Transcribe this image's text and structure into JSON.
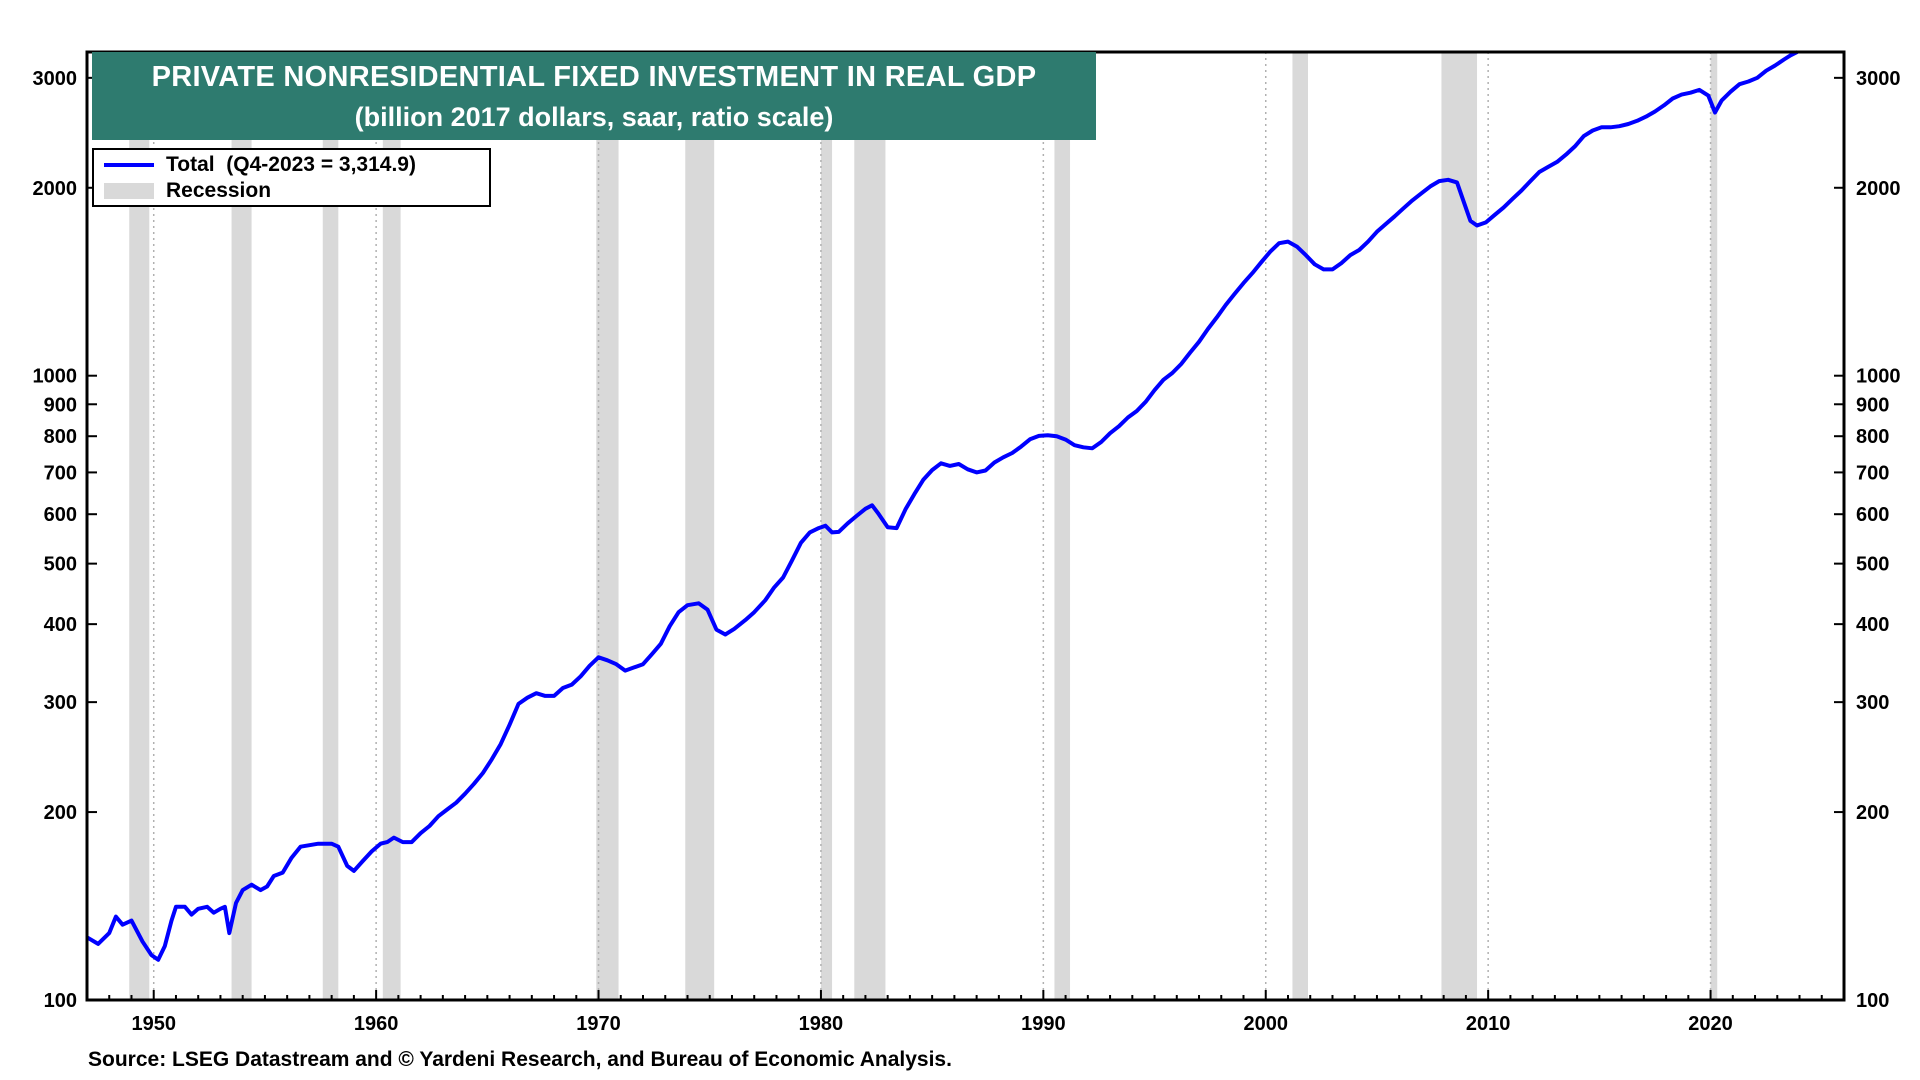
{
  "chart_data": {
    "type": "line",
    "title": "PRIVATE NONRESIDENTIAL FIXED INVESTMENT IN REAL GDP",
    "subtitle": "(billion 2017 dollars, saar, ratio scale)",
    "source": "Source: LSEG Datastream and © Yardeni Research, and Bureau of Economic Analysis.",
    "y_scale": "log",
    "ylim": [
      100,
      3300
    ],
    "xlim": [
      1947,
      2026
    ],
    "grid": true,
    "legend_position": "top-left",
    "legend": [
      {
        "label": "Total  (Q4-2023 = 3,314.9)",
        "kind": "line",
        "color": "#0000ff"
      },
      {
        "label": "Recession",
        "kind": "band",
        "color": "#d9d9d9"
      }
    ],
    "y_ticks": [
      {
        "value": 100,
        "label": "100"
      },
      {
        "value": 200,
        "label": "200"
      },
      {
        "value": 300,
        "label": "300"
      },
      {
        "value": 400,
        "label": "400"
      },
      {
        "value": 500,
        "label": "500"
      },
      {
        "value": 600,
        "label": "600"
      },
      {
        "value": 700,
        "label": "700"
      },
      {
        "value": 800,
        "label": "800"
      },
      {
        "value": 900,
        "label": "900"
      },
      {
        "value": 1000,
        "label": "1000"
      },
      {
        "value": 2000,
        "label": "2000"
      },
      {
        "value": 3000,
        "label": "3000"
      }
    ],
    "x_ticks": [
      {
        "value": 1950,
        "label": "1950"
      },
      {
        "value": 1960,
        "label": "1960"
      },
      {
        "value": 1970,
        "label": "1970"
      },
      {
        "value": 1980,
        "label": "1980"
      },
      {
        "value": 1990,
        "label": "1990"
      },
      {
        "value": 2000,
        "label": "2000"
      },
      {
        "value": 2010,
        "label": "2010"
      },
      {
        "value": 2020,
        "label": "2020"
      }
    ],
    "recessions": [
      [
        1948.9,
        1949.8
      ],
      [
        1953.5,
        1954.4
      ],
      [
        1957.6,
        1958.3
      ],
      [
        1960.3,
        1961.1
      ],
      [
        1969.9,
        1970.9
      ],
      [
        1973.9,
        1975.2
      ],
      [
        1980.0,
        1980.5
      ],
      [
        1981.5,
        1982.9
      ],
      [
        1990.5,
        1991.2
      ],
      [
        2001.2,
        2001.9
      ],
      [
        2007.9,
        2009.5
      ],
      [
        2020.0,
        2020.3
      ]
    ],
    "series": [
      {
        "name": "Total",
        "color": "#0000ff",
        "points": [
          [
            1947.0,
            126
          ],
          [
            1947.5,
            123
          ],
          [
            1948.0,
            128
          ],
          [
            1948.3,
            136
          ],
          [
            1948.6,
            132
          ],
          [
            1949.0,
            134
          ],
          [
            1949.5,
            124
          ],
          [
            1949.9,
            118
          ],
          [
            1950.2,
            116
          ],
          [
            1950.5,
            122
          ],
          [
            1950.8,
            134
          ],
          [
            1951.0,
            141
          ],
          [
            1951.4,
            141
          ],
          [
            1951.7,
            137
          ],
          [
            1952.0,
            140
          ],
          [
            1952.4,
            141
          ],
          [
            1952.7,
            138
          ],
          [
            1953.0,
            140
          ],
          [
            1953.2,
            141
          ],
          [
            1953.4,
            128
          ],
          [
            1953.7,
            143
          ],
          [
            1954.0,
            150
          ],
          [
            1954.4,
            153
          ],
          [
            1954.8,
            150
          ],
          [
            1955.1,
            152
          ],
          [
            1955.4,
            158
          ],
          [
            1955.8,
            160
          ],
          [
            1956.2,
            169
          ],
          [
            1956.6,
            176
          ],
          [
            1957.0,
            177
          ],
          [
            1957.4,
            178
          ],
          [
            1957.7,
            178
          ],
          [
            1958.0,
            178
          ],
          [
            1958.3,
            176
          ],
          [
            1958.7,
            164
          ],
          [
            1959.0,
            161
          ],
          [
            1959.4,
            167
          ],
          [
            1959.8,
            173
          ],
          [
            1960.2,
            178
          ],
          [
            1960.5,
            179
          ],
          [
            1960.8,
            182
          ],
          [
            1961.2,
            179
          ],
          [
            1961.6,
            179
          ],
          [
            1962.0,
            185
          ],
          [
            1962.4,
            190
          ],
          [
            1962.8,
            197
          ],
          [
            1963.2,
            202
          ],
          [
            1963.6,
            207
          ],
          [
            1964.0,
            214
          ],
          [
            1964.4,
            222
          ],
          [
            1964.8,
            231
          ],
          [
            1965.2,
            243
          ],
          [
            1965.6,
            257
          ],
          [
            1966.0,
            276
          ],
          [
            1966.4,
            298
          ],
          [
            1966.8,
            305
          ],
          [
            1967.2,
            310
          ],
          [
            1967.6,
            307
          ],
          [
            1968.0,
            307
          ],
          [
            1968.4,
            316
          ],
          [
            1968.8,
            320
          ],
          [
            1969.2,
            330
          ],
          [
            1969.6,
            343
          ],
          [
            1970.0,
            354
          ],
          [
            1970.4,
            350
          ],
          [
            1970.8,
            345
          ],
          [
            1971.2,
            337
          ],
          [
            1971.6,
            341
          ],
          [
            1972.0,
            345
          ],
          [
            1972.4,
            358
          ],
          [
            1972.8,
            372
          ],
          [
            1973.2,
            397
          ],
          [
            1973.6,
            418
          ],
          [
            1974.0,
            429
          ],
          [
            1974.5,
            432
          ],
          [
            1974.9,
            422
          ],
          [
            1975.3,
            392
          ],
          [
            1975.7,
            385
          ],
          [
            1976.1,
            393
          ],
          [
            1976.6,
            406
          ],
          [
            1977.0,
            418
          ],
          [
            1977.5,
            437
          ],
          [
            1977.9,
            458
          ],
          [
            1978.3,
            475
          ],
          [
            1978.7,
            506
          ],
          [
            1979.1,
            540
          ],
          [
            1979.5,
            561
          ],
          [
            1979.9,
            570
          ],
          [
            1980.2,
            575
          ],
          [
            1980.5,
            561
          ],
          [
            1980.8,
            562
          ],
          [
            1981.2,
            580
          ],
          [
            1981.6,
            596
          ],
          [
            1982.0,
            612
          ],
          [
            1982.3,
            620
          ],
          [
            1982.6,
            600
          ],
          [
            1983.0,
            572
          ],
          [
            1983.4,
            570
          ],
          [
            1983.8,
            611
          ],
          [
            1984.2,
            646
          ],
          [
            1984.6,
            681
          ],
          [
            1985.0,
            706
          ],
          [
            1985.4,
            724
          ],
          [
            1985.8,
            717
          ],
          [
            1986.2,
            722
          ],
          [
            1986.6,
            708
          ],
          [
            1987.0,
            700
          ],
          [
            1987.4,
            705
          ],
          [
            1987.8,
            726
          ],
          [
            1988.2,
            740
          ],
          [
            1988.6,
            752
          ],
          [
            1989.0,
            770
          ],
          [
            1989.4,
            791
          ],
          [
            1989.8,
            801
          ],
          [
            1990.2,
            803
          ],
          [
            1990.6,
            800
          ],
          [
            1991.0,
            790
          ],
          [
            1991.4,
            774
          ],
          [
            1991.8,
            768
          ],
          [
            1992.2,
            765
          ],
          [
            1992.6,
            783
          ],
          [
            1993.0,
            809
          ],
          [
            1993.4,
            830
          ],
          [
            1993.8,
            857
          ],
          [
            1994.2,
            878
          ],
          [
            1994.6,
            908
          ],
          [
            1995.0,
            948
          ],
          [
            1995.4,
            985
          ],
          [
            1995.8,
            1010
          ],
          [
            1996.2,
            1044
          ],
          [
            1996.6,
            1089
          ],
          [
            1997.0,
            1133
          ],
          [
            1997.4,
            1188
          ],
          [
            1997.8,
            1240
          ],
          [
            1998.2,
            1298
          ],
          [
            1998.6,
            1352
          ],
          [
            1999.0,
            1407
          ],
          [
            1999.4,
            1460
          ],
          [
            1999.8,
            1520
          ],
          [
            2000.2,
            1580
          ],
          [
            2000.6,
            1630
          ],
          [
            2001.0,
            1640
          ],
          [
            2001.4,
            1610
          ],
          [
            2001.8,
            1560
          ],
          [
            2002.2,
            1508
          ],
          [
            2002.6,
            1480
          ],
          [
            2003.0,
            1480
          ],
          [
            2003.4,
            1515
          ],
          [
            2003.8,
            1560
          ],
          [
            2004.2,
            1590
          ],
          [
            2004.6,
            1640
          ],
          [
            2005.0,
            1700
          ],
          [
            2005.4,
            1750
          ],
          [
            2005.8,
            1800
          ],
          [
            2006.2,
            1855
          ],
          [
            2006.6,
            1910
          ],
          [
            2007.0,
            1960
          ],
          [
            2007.4,
            2010
          ],
          [
            2007.8,
            2050
          ],
          [
            2008.2,
            2060
          ],
          [
            2008.6,
            2040
          ],
          [
            2008.9,
            1900
          ],
          [
            2009.2,
            1770
          ],
          [
            2009.5,
            1740
          ],
          [
            2009.9,
            1760
          ],
          [
            2010.3,
            1810
          ],
          [
            2010.7,
            1860
          ],
          [
            2011.1,
            1920
          ],
          [
            2011.5,
            1980
          ],
          [
            2011.9,
            2050
          ],
          [
            2012.3,
            2120
          ],
          [
            2012.7,
            2160
          ],
          [
            2013.1,
            2200
          ],
          [
            2013.5,
            2260
          ],
          [
            2013.9,
            2330
          ],
          [
            2014.3,
            2420
          ],
          [
            2014.7,
            2470
          ],
          [
            2015.1,
            2500
          ],
          [
            2015.5,
            2500
          ],
          [
            2015.9,
            2510
          ],
          [
            2016.3,
            2530
          ],
          [
            2016.7,
            2560
          ],
          [
            2017.1,
            2600
          ],
          [
            2017.5,
            2650
          ],
          [
            2017.9,
            2710
          ],
          [
            2018.3,
            2780
          ],
          [
            2018.7,
            2820
          ],
          [
            2019.1,
            2840
          ],
          [
            2019.5,
            2870
          ],
          [
            2019.9,
            2810
          ],
          [
            2020.2,
            2640
          ],
          [
            2020.5,
            2760
          ],
          [
            2020.9,
            2850
          ],
          [
            2021.3,
            2930
          ],
          [
            2021.7,
            2960
          ],
          [
            2022.1,
            3000
          ],
          [
            2022.5,
            3080
          ],
          [
            2022.9,
            3140
          ],
          [
            2023.3,
            3210
          ],
          [
            2023.6,
            3260
          ],
          [
            2023.9,
            3300
          ]
        ]
      }
    ]
  }
}
